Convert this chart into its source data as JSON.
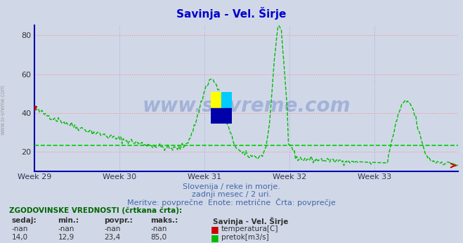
{
  "title": "Savinja - Vel. Širje",
  "title_color": "#0000cc",
  "bg_color": "#d0d8e8",
  "plot_bg_color": "#d0d8e8",
  "xlabel_weeks": [
    "Week 29",
    "Week 30",
    "Week 31",
    "Week 32",
    "Week 33"
  ],
  "ylim": [
    10,
    85
  ],
  "yticks": [
    20,
    40,
    60,
    80
  ],
  "grid_h_color": "#ff8888",
  "grid_v_color": "#aaaacc",
  "avg_line_color": "#00cc00",
  "avg_value": 23.4,
  "line_color": "#00bb00",
  "line_width": 1.0,
  "subtitle1": "Slovenija / reke in morje.",
  "subtitle2": "zadnji mesec / 2 uri.",
  "subtitle3": "Meritve: povprečne  Enote: metrične  Črta: povprečje",
  "subtitle_color": "#4466aa",
  "watermark": "www.si-vreme.com",
  "watermark_color": "#2244aa",
  "table_header": "ZGODOVINSKE VREDNOSTI (črtkana črta):",
  "table_cols": [
    "sedaj:",
    "min.:",
    "povpr.:",
    "maks.:"
  ],
  "row1": [
    "-nan",
    "-nan",
    "-nan",
    "-nan"
  ],
  "row2": [
    "14,0",
    "12,9",
    "23,4",
    "85,0"
  ],
  "legend_title": "Savinja - Vel. Širje",
  "legend_items": [
    "temperatura[C]",
    "pretok[m3/s]"
  ],
  "legend_colors": [
    "#cc0000",
    "#00bb00"
  ],
  "end_marker_color": "#cc0000",
  "spine_color": "#0000aa",
  "vline_color": "#aaaacc",
  "num_points": 360
}
